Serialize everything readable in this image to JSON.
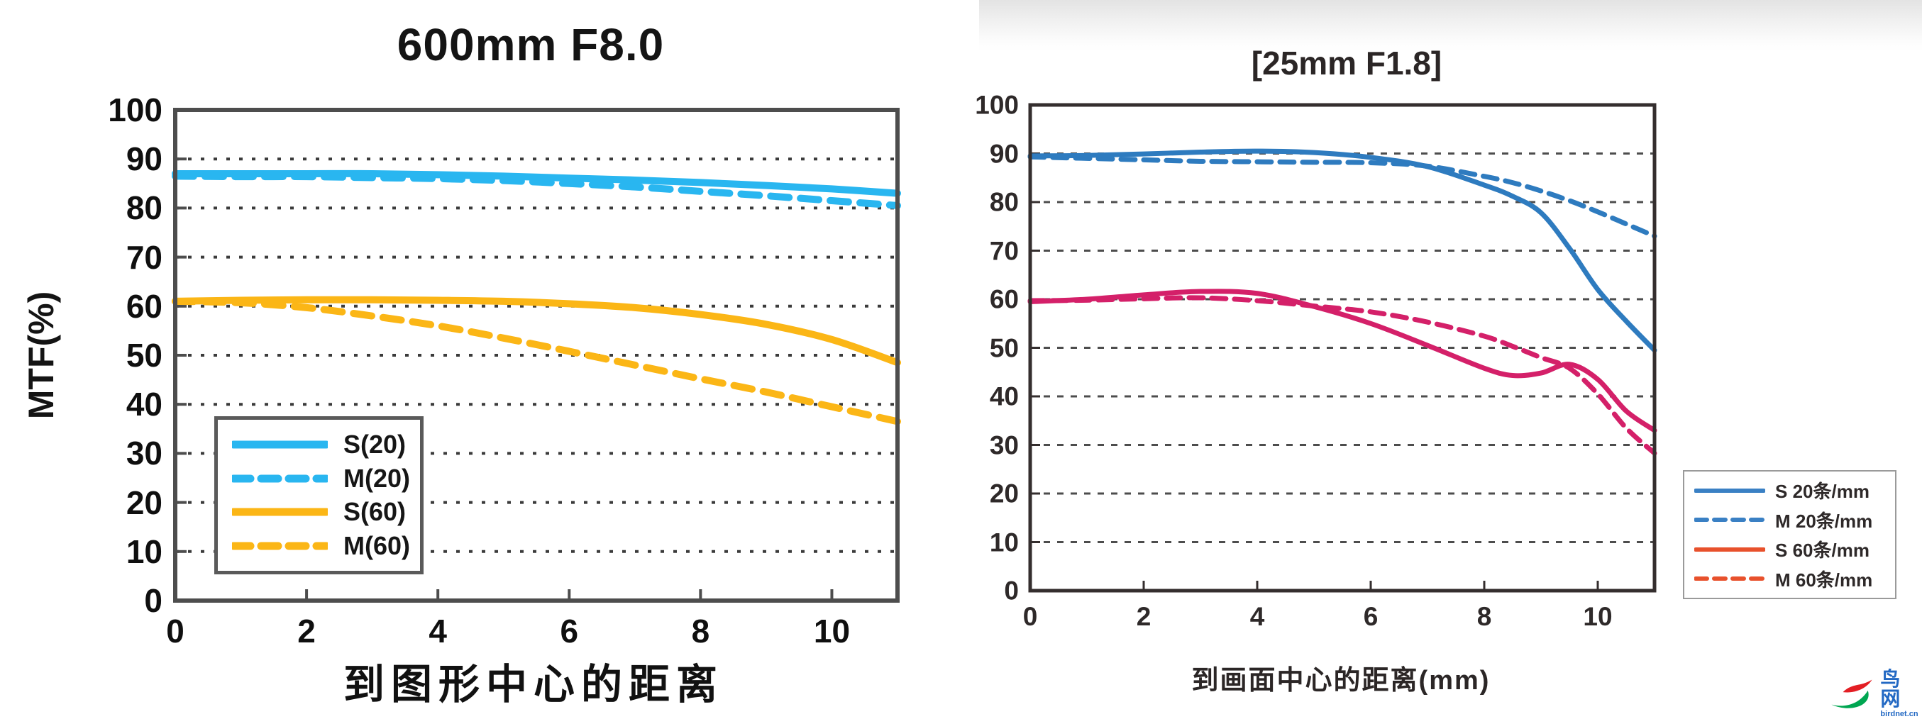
{
  "page": {
    "background": "#ffffff",
    "right_panel_gradient_top": "#e3e3e3"
  },
  "chart_data": [
    {
      "type": "line",
      "title": "600mm F8.0",
      "xlabel": "到图形中心的距离",
      "ylabel": "MTF(%)",
      "xlim": [
        0,
        11
      ],
      "ylim": [
        0,
        100
      ],
      "x_ticks": [
        0,
        2,
        4,
        6,
        8,
        10
      ],
      "y_ticks": [
        0,
        10,
        20,
        30,
        40,
        50,
        60,
        70,
        80,
        90,
        100
      ],
      "grid": "horizontal-dotted",
      "legend_position": "inside-bottom-left",
      "colors": {
        "frame": "#4d4d4d",
        "grid": "#3b3b3b",
        "text": "#0f0f0f"
      },
      "x": [
        0,
        1,
        2,
        3,
        4,
        5,
        6,
        7,
        8,
        9,
        10,
        11
      ],
      "series": [
        {
          "name": "S(20)",
          "style": "solid",
          "color": "#29b6f0",
          "values": [
            87,
            87,
            87,
            87,
            86.8,
            86.5,
            86.1,
            85.7,
            85.2,
            84.6,
            83.9,
            83
          ]
        },
        {
          "name": "M(20)",
          "style": "dashed",
          "color": "#29b6f0",
          "values": [
            86.5,
            86.4,
            86.4,
            86.2,
            86,
            85.6,
            85,
            84.3,
            83.4,
            82.5,
            81.5,
            80.5
          ]
        },
        {
          "name": "S(60)",
          "style": "solid",
          "color": "#fbb616",
          "values": [
            61,
            61.2,
            61.3,
            61.3,
            61.2,
            61,
            60.5,
            59.7,
            58.3,
            56.3,
            53.2,
            48.5
          ]
        },
        {
          "name": "M(60)",
          "style": "dashed",
          "color": "#fbb616",
          "values": [
            61,
            60.7,
            59.7,
            58,
            56,
            53.5,
            50.8,
            48,
            45.2,
            42.5,
            39.5,
            36.5
          ]
        }
      ],
      "legend": [
        {
          "label": "S(20)",
          "color": "#29b6f0",
          "style": "solid"
        },
        {
          "label": "M(20)",
          "color": "#29b6f0",
          "style": "dashed"
        },
        {
          "label": "S(60)",
          "color": "#fbb616",
          "style": "solid"
        },
        {
          "label": "M(60)",
          "color": "#fbb616",
          "style": "dashed"
        }
      ]
    },
    {
      "type": "line",
      "title": "[25mm F1.8]",
      "xlabel": "到画面中心的距离(mm)",
      "ylabel": "",
      "xlim": [
        0,
        11
      ],
      "ylim": [
        0,
        100
      ],
      "x_ticks": [
        0,
        2,
        4,
        6,
        8,
        10
      ],
      "y_ticks": [
        0,
        10,
        20,
        30,
        40,
        50,
        60,
        70,
        80,
        90,
        100
      ],
      "grid": "horizontal-dashed",
      "legend_position": "outside-right",
      "colors": {
        "frame": "#342e2e",
        "grid": "#4d4d4d",
        "text": "#2e2929"
      },
      "x": [
        0,
        1,
        2,
        3,
        4,
        5,
        6,
        7,
        8,
        8.5,
        9,
        9.5,
        10,
        10.5,
        11
      ],
      "series": [
        {
          "name": "S 20条/mm",
          "style": "solid",
          "color": "#2e7bbf",
          "values": [
            89.5,
            89.6,
            89.9,
            90.3,
            90.5,
            90.2,
            89.2,
            87.3,
            83.5,
            81.2,
            77.8,
            70.5,
            62,
            55.5,
            49.5
          ]
        },
        {
          "name": "M 20条/mm",
          "style": "dashed",
          "color": "#2e7bbf",
          "values": [
            89.3,
            89,
            88.7,
            88.4,
            88.3,
            88.2,
            88.1,
            87.4,
            85.3,
            84,
            82.3,
            80.3,
            78,
            75.5,
            73
          ]
        },
        {
          "name": "S 60条/mm",
          "style": "solid",
          "color": "#d42069",
          "values": [
            59.5,
            60,
            60.9,
            61.6,
            61.2,
            58.5,
            55,
            50.5,
            45.8,
            44.3,
            44.8,
            46.6,
            43.5,
            37,
            33
          ]
        },
        {
          "name": "M 60条/mm",
          "style": "dashed",
          "color": "#d42069",
          "values": [
            59.7,
            59.8,
            60.1,
            60.3,
            59.7,
            58.6,
            57.4,
            55.3,
            52.4,
            50.3,
            48,
            45.8,
            40.5,
            33.5,
            28.3
          ]
        }
      ],
      "legend": [
        {
          "label": "S 20条/mm",
          "color": "#3a80c4",
          "style": "solid"
        },
        {
          "label": "M 20条/mm",
          "color": "#3a80c4",
          "style": "dashed"
        },
        {
          "label": "S 60条/mm",
          "color": "#e8512c",
          "style": "solid"
        },
        {
          "label": "M 60条/mm",
          "color": "#e8512c",
          "style": "dashed"
        }
      ]
    }
  ],
  "logo": {
    "title": "鸟网",
    "domain": "birdnet.cn",
    "text_color": "#2268c3",
    "swoosh_red": "#e31e24",
    "swoosh_green": "#00a651"
  }
}
